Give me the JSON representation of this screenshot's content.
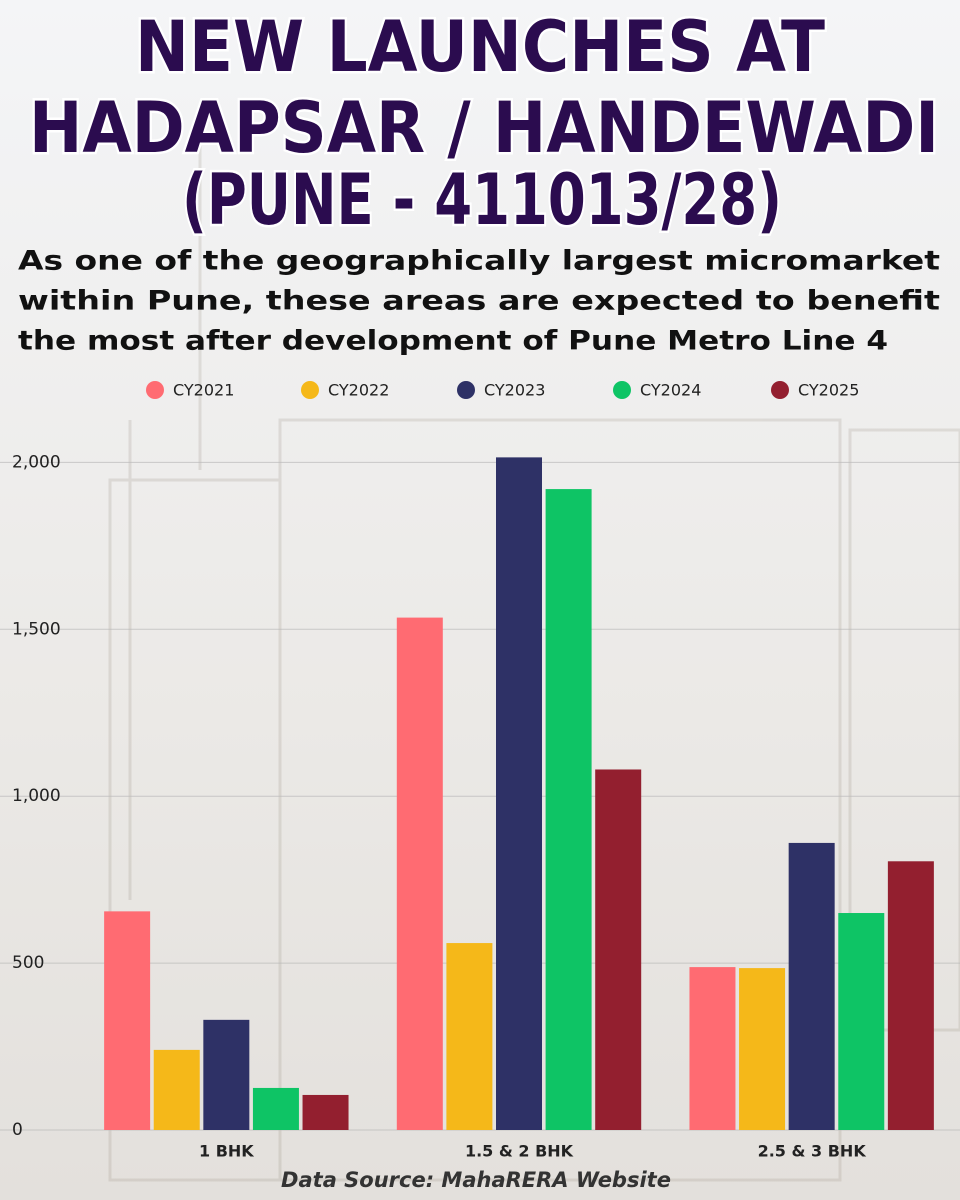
{
  "chart_data": {
    "type": "bar",
    "title": [
      "NEW LAUNCHES AT",
      "HADAPSAR / HANDEWADI",
      "(PUNE - 411013/28)"
    ],
    "subtitle": [
      "As one of the geographically largest micromarket",
      "within Pune, these areas are expected to benefit",
      "the most after development of Pune Metro Line 4"
    ],
    "source": "Data Source: MahaRERA Website",
    "categories": [
      "1 BHK",
      "1.5 & 2 BHK",
      "2.5 & 3 BHK"
    ],
    "series": [
      {
        "name": "CY2021",
        "color": "#ff6b72",
        "values": [
          655,
          1535,
          488
        ]
      },
      {
        "name": "CY2022",
        "color": "#f5b819",
        "values": [
          240,
          560,
          485
        ]
      },
      {
        "name": "CY2023",
        "color": "#2e3166",
        "values": [
          330,
          2015,
          860
        ]
      },
      {
        "name": "CY2024",
        "color": "#0ec465",
        "values": [
          126,
          1920,
          650
        ]
      },
      {
        "name": "CY2025",
        "color": "#931f2f",
        "values": [
          105,
          1080,
          805
        ]
      }
    ],
    "ylim": [
      0,
      2100
    ],
    "yticks": [
      0,
      500,
      {
        "value": 1000,
        "label": "1,000"
      },
      {
        "value": 1500,
        "label": "1,500"
      },
      {
        "value": 2000,
        "label": "2,000"
      }
    ],
    "grid": true,
    "legend": "top"
  }
}
